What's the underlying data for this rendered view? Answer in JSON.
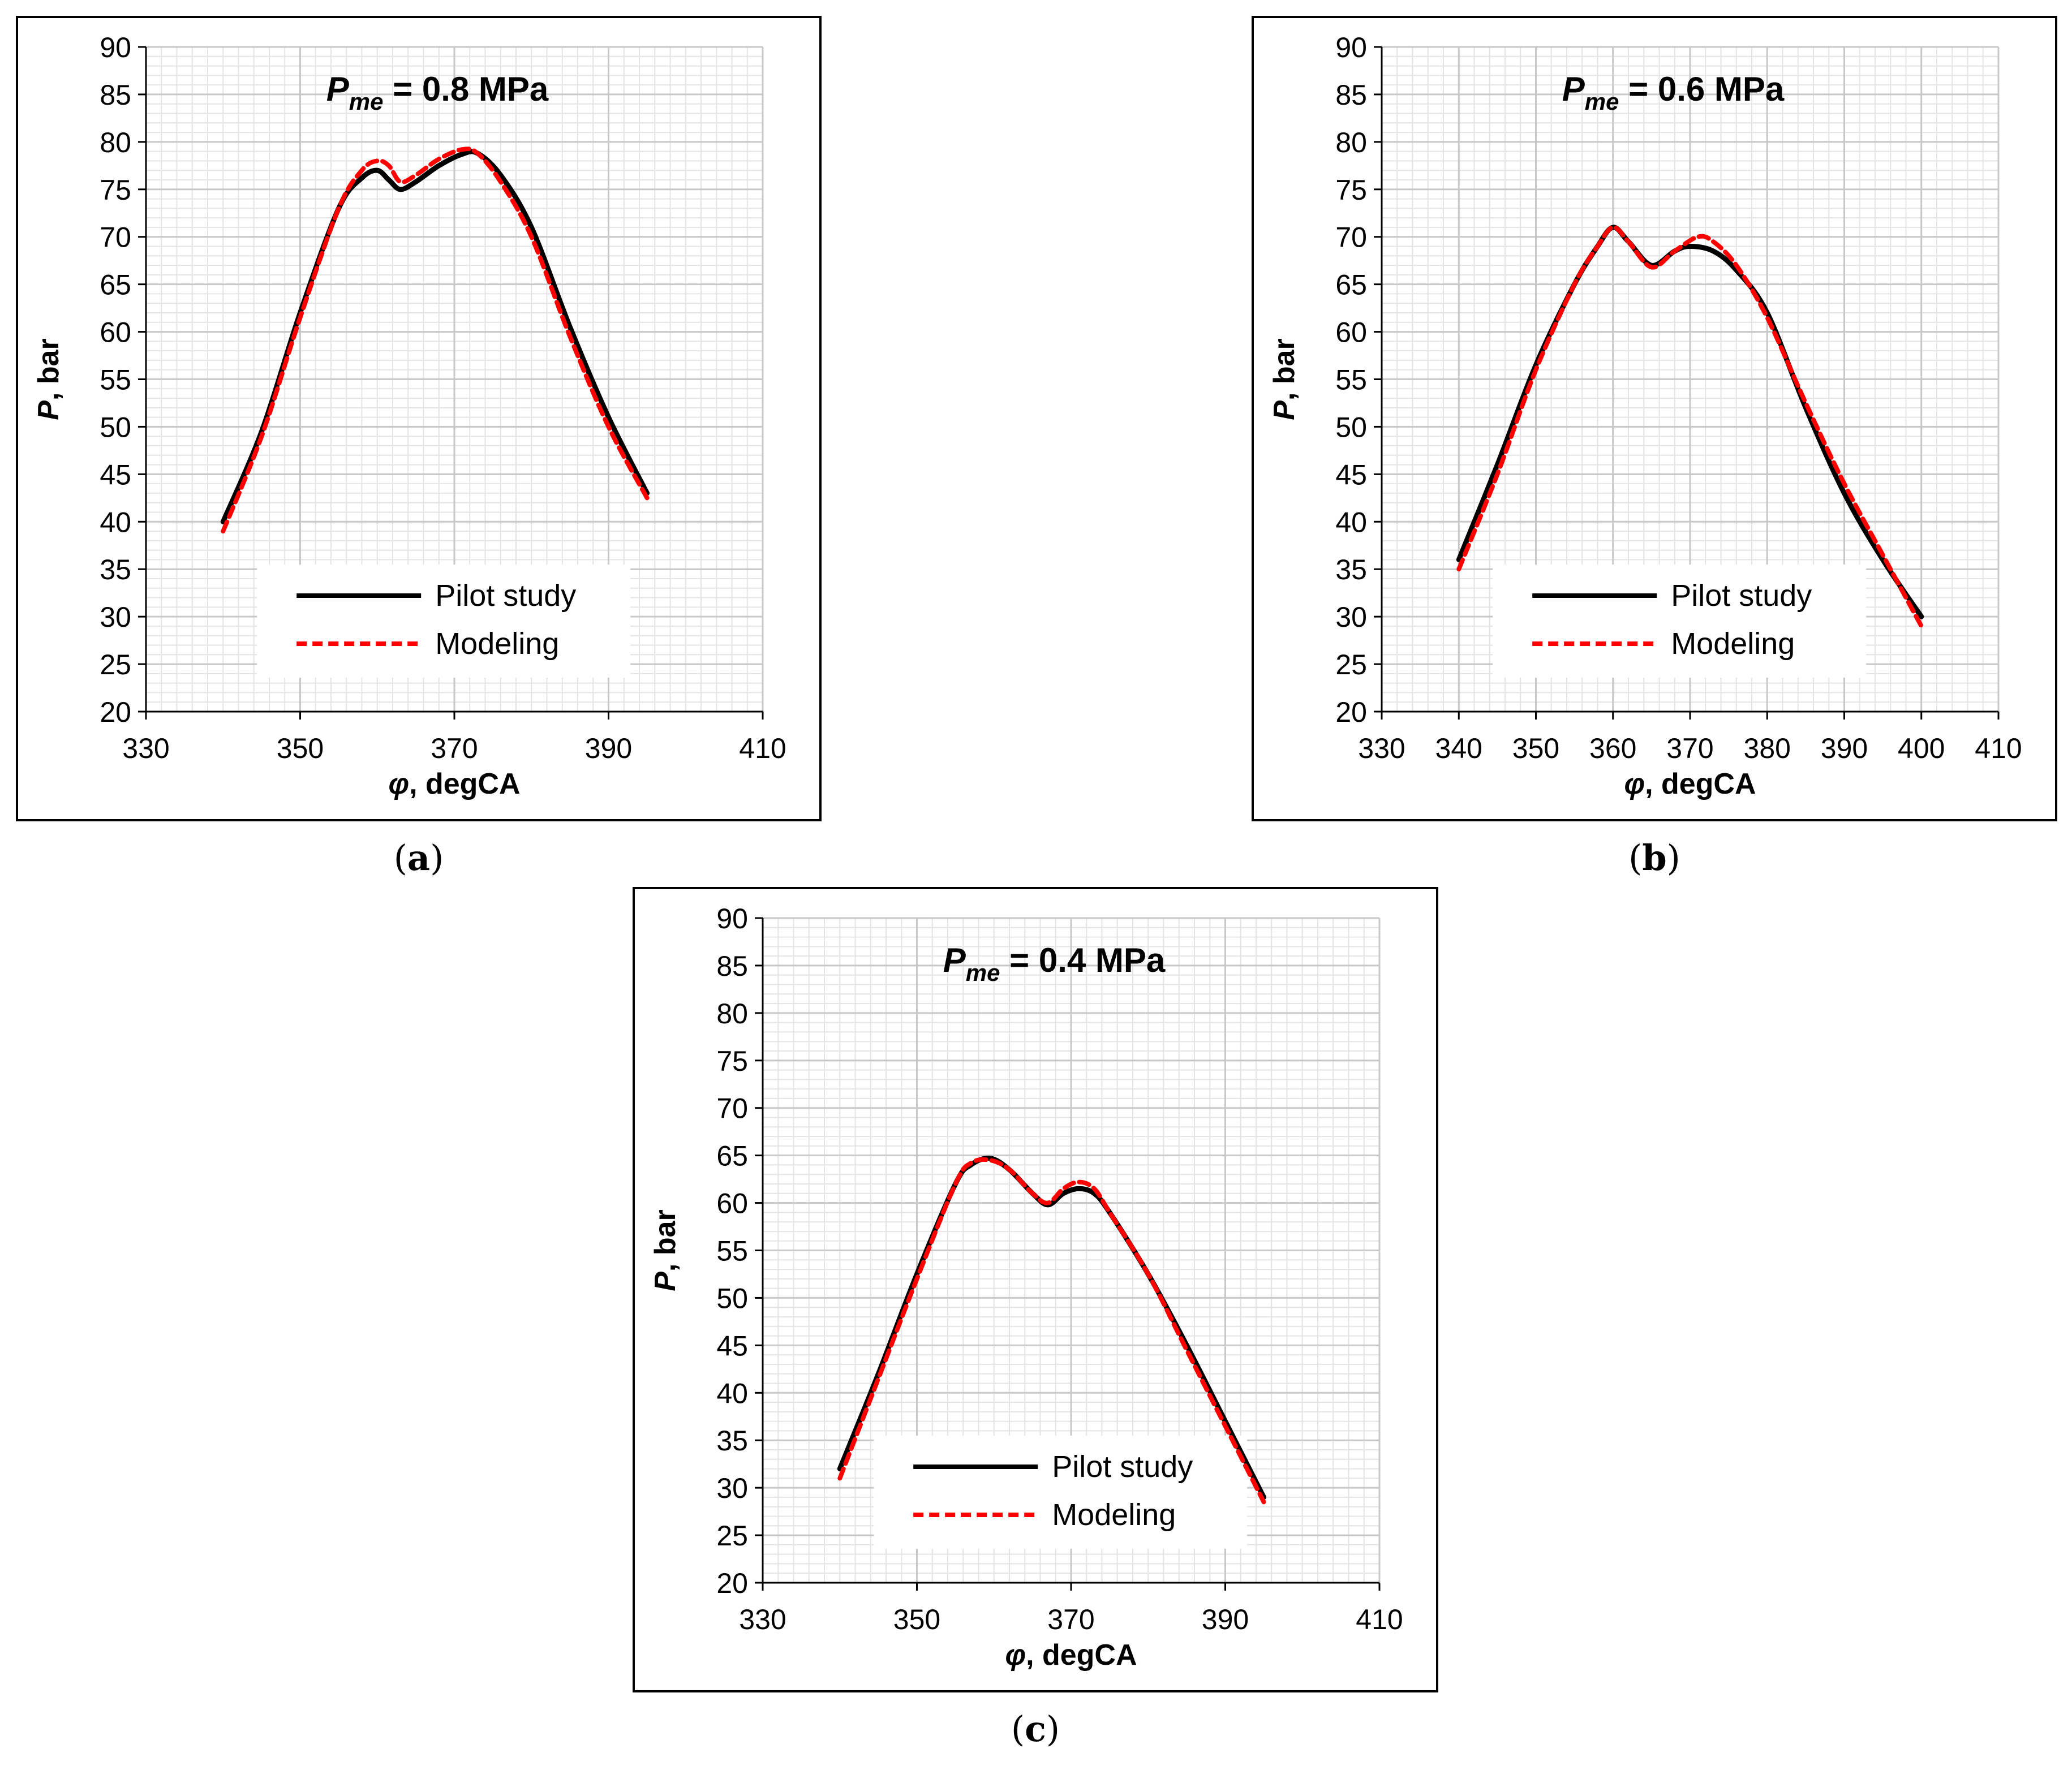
{
  "colors": {
    "pilot": "#000000",
    "modeling": "#ff0000",
    "major_grid": "#c8c8c8",
    "minor_grid": "#e4e4e4"
  },
  "chart_data": [
    {
      "type": "line",
      "panel_label": "a",
      "title_var": "P",
      "title_sub": "me",
      "title_value": " = 0.8 MPa",
      "xlabel_var": "φ",
      "xlabel_rest": ", degCA",
      "ylabel_var": "P",
      "ylabel_rest": ", bar",
      "xlim": [
        330,
        410
      ],
      "ylim": [
        20,
        90
      ],
      "xticks": [
        330,
        350,
        370,
        390,
        410
      ],
      "yticks": [
        20,
        25,
        30,
        35,
        40,
        45,
        50,
        55,
        60,
        65,
        70,
        75,
        80,
        85,
        90
      ],
      "legend": [
        "Pilot study",
        "Modeling"
      ],
      "series": [
        {
          "name": "Pilot study",
          "x": [
            340,
            345,
            350,
            355,
            358,
            360,
            361.5,
            363,
            365,
            368,
            371,
            373,
            376,
            380,
            385,
            390,
            395
          ],
          "y": [
            40,
            49.5,
            62,
            73,
            76.2,
            77,
            76,
            75,
            75.8,
            77.5,
            78.7,
            78.8,
            76.5,
            71,
            60.5,
            51,
            43
          ]
        },
        {
          "name": "Modeling",
          "x": [
            340,
            345,
            350,
            355,
            358,
            360,
            361.5,
            363,
            365,
            368,
            371,
            373,
            376,
            380,
            385,
            390,
            395
          ],
          "y": [
            39,
            49,
            61.5,
            73,
            77,
            78,
            77.5,
            75.8,
            76.5,
            78.2,
            79.2,
            78.8,
            75.8,
            70,
            59.5,
            50,
            42.5
          ]
        }
      ]
    },
    {
      "type": "line",
      "panel_label": "b",
      "title_var": "P",
      "title_sub": "me",
      "title_value": " = 0.6 MPa",
      "xlabel_var": "φ",
      "xlabel_rest": ", degCA",
      "ylabel_var": "P",
      "ylabel_rest": ", bar",
      "xlim": [
        330,
        410
      ],
      "ylim": [
        20,
        90
      ],
      "xticks": [
        330,
        340,
        350,
        360,
        370,
        380,
        390,
        400,
        410
      ],
      "yticks": [
        20,
        25,
        30,
        35,
        40,
        45,
        50,
        55,
        60,
        65,
        70,
        75,
        80,
        85,
        90
      ],
      "legend": [
        "Pilot study",
        "Modeling"
      ],
      "series": [
        {
          "name": "Pilot study",
          "x": [
            340,
            345,
            350,
            355,
            358,
            360,
            362,
            365,
            368,
            370,
            373,
            376,
            380,
            385,
            390,
            395,
            400
          ],
          "y": [
            36,
            46,
            56.5,
            65,
            69,
            71,
            69.5,
            67,
            68.5,
            69,
            68.5,
            66.5,
            62,
            52,
            43,
            36,
            30
          ]
        },
        {
          "name": "Modeling",
          "x": [
            340,
            345,
            350,
            355,
            358,
            360,
            362,
            365,
            368,
            371,
            373,
            376,
            380,
            385,
            390,
            395,
            400
          ],
          "y": [
            35,
            45,
            56,
            65,
            69,
            71,
            69.5,
            66.8,
            68.5,
            70,
            69.5,
            67,
            61.5,
            52.5,
            44,
            36.5,
            29
          ]
        }
      ]
    },
    {
      "type": "line",
      "panel_label": "c",
      "title_var": "P",
      "title_sub": "me",
      "title_value": " = 0.4 MPa",
      "xlabel_var": "φ",
      "xlabel_rest": ", degCA",
      "ylabel_var": "P",
      "ylabel_rest": ", bar",
      "xlim": [
        330,
        410
      ],
      "ylim": [
        20,
        90
      ],
      "xticks": [
        330,
        350,
        370,
        390,
        410
      ],
      "yticks": [
        20,
        25,
        30,
        35,
        40,
        45,
        50,
        55,
        60,
        65,
        70,
        75,
        80,
        85,
        90
      ],
      "legend": [
        "Pilot study",
        "Modeling"
      ],
      "series": [
        {
          "name": "Pilot study",
          "x": [
            340,
            345,
            350,
            355,
            357,
            359.5,
            362,
            365,
            367,
            369,
            371,
            373,
            375,
            380,
            385,
            390,
            395
          ],
          "y": [
            32,
            42,
            52.5,
            62,
            64,
            64.7,
            63.5,
            61,
            59.8,
            61,
            61.5,
            61,
            59,
            52.5,
            45,
            37,
            29
          ]
        },
        {
          "name": "Modeling",
          "x": [
            340,
            345,
            350,
            355,
            357,
            359.5,
            362,
            365,
            367,
            369,
            371,
            373,
            375,
            380,
            385,
            390,
            395
          ],
          "y": [
            31,
            41.5,
            52,
            62,
            64.2,
            64.5,
            63.5,
            61,
            60,
            61.5,
            62.2,
            61.5,
            59,
            52.5,
            44.5,
            36.5,
            28.5
          ]
        }
      ]
    }
  ]
}
